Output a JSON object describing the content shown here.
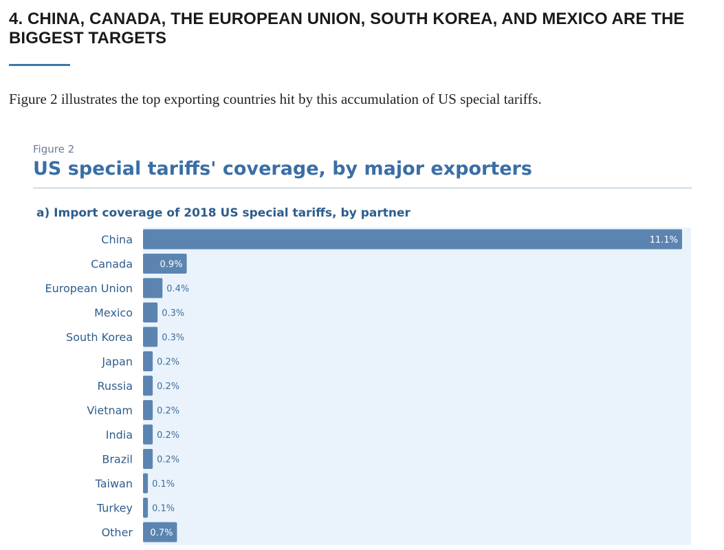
{
  "section": {
    "heading": "4. CHINA, CANADA, THE EUROPEAN UNION, SOUTH KOREA, AND MEXICO ARE THE BIGGEST TARGETS",
    "intro": "Figure 2 illustrates the top exporting countries hit by this accumulation of US special tariffs."
  },
  "figure": {
    "label": "Figure 2",
    "title": "US special tariffs' coverage, by major exporters",
    "subtitle": "a) Import coverage of 2018 US special tariffs, by partner"
  },
  "colors": {
    "bar": "#5b84b1",
    "plot_background": "#eaf3fb",
    "category_label": "#2d5d8c",
    "value_label_inside": "#ffffff",
    "value_label_outside": "#3e6f9e"
  },
  "chart_data": {
    "type": "bar",
    "orientation": "horizontal",
    "title": "a) Import coverage of 2018 US special tariffs, by partner",
    "xlabel": "",
    "ylabel": "",
    "unit": "%",
    "xlim": [
      0,
      11.1
    ],
    "grid": false,
    "categories": [
      "China",
      "Canada",
      "European Union",
      "Mexico",
      "South Korea",
      "Japan",
      "Russia",
      "Vietnam",
      "India",
      "Brazil",
      "Taiwan",
      "Turkey",
      "Other"
    ],
    "values": [
      11.1,
      0.9,
      0.4,
      0.3,
      0.3,
      0.2,
      0.2,
      0.2,
      0.2,
      0.2,
      0.1,
      0.1,
      0.7
    ],
    "labels": [
      "11.1%",
      "0.9%",
      "0.4%",
      "0.3%",
      "0.3%",
      "0.2%",
      "0.2%",
      "0.2%",
      "0.2%",
      "0.2%",
      "0.1%",
      "0.1%",
      "0.7%"
    ]
  }
}
